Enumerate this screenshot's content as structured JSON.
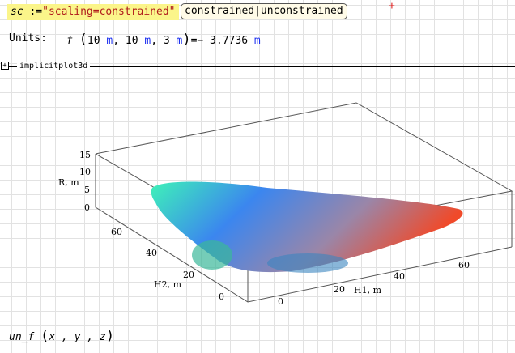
{
  "assignment": {
    "variable": "sc",
    "operator": ":=",
    "value": "\"scaling=constrained\""
  },
  "toggle": {
    "label": "constrained|unconstrained"
  },
  "units_label": "Units:",
  "evaluation": {
    "func": "f",
    "open": "(",
    "a1": "10",
    "u1": "m",
    "sep1": ",",
    "a2": "10",
    "u2": "m",
    "sep2": ",",
    "a3": "3",
    "u3": "m",
    "close": ")",
    "eq": "=",
    "result": "− 3.7736",
    "result_unit": "m"
  },
  "section": {
    "title": "implicitplot3d",
    "expand_icon": "plus-box-icon"
  },
  "plot": {
    "type": "3d-implicit-surface",
    "axes": {
      "R": {
        "label": "R, m",
        "ticks": [
          "15",
          "10",
          "5",
          "0"
        ]
      },
      "H2": {
        "label": "H2, m",
        "ticks": [
          "60",
          "40",
          "20",
          "0"
        ]
      },
      "H1": {
        "label": "H1, m",
        "ticks": [
          "0",
          "20",
          "40",
          "60"
        ]
      }
    },
    "colors": {
      "green": "#3ef2b8",
      "blue": "#3b86ef",
      "red": "#f04a2a"
    }
  },
  "call": {
    "func": "un_f",
    "open": "(",
    "args": "x , y , z",
    "close": ")"
  },
  "cursor_icon": "crosshair-icon"
}
